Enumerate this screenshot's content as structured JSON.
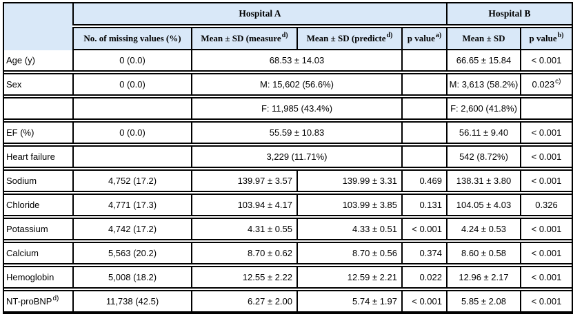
{
  "table": {
    "header": {
      "hospital_a": "Hospital A",
      "hospital_b": "Hospital B",
      "columns": {
        "missing": "No. of missing values (%)",
        "measured": {
          "text": "Mean ± SD (measure",
          "sup": "d)"
        },
        "predicted": {
          "text": "Mean ± SD (predicte",
          "sup": "d)"
        },
        "pvalue_a": {
          "text": "p value",
          "sup": "a)"
        },
        "mean_sd": "Mean ± SD",
        "pvalue_b": {
          "text": "p value",
          "sup": "b)"
        }
      }
    },
    "rows": [
      {
        "label": "Age (y)",
        "missing": "0 (0.0)",
        "span": "68.53 ± 14.03",
        "pvalue_a": "",
        "mean_sd": "66.65 ± 15.84",
        "pvalue_b": "< 0.001"
      },
      {
        "label": "Sex",
        "missing": "0 (0.0)",
        "span": "M: 15,602 (56.6%)",
        "pvalue_a": "",
        "mean_sd": "M: 3,613 (58.2%)",
        "pvalue_b": "0.023",
        "pvalue_b_sup": "c)"
      },
      {
        "label": "",
        "missing": "",
        "span": "F: 11,985 (43.4%)",
        "pvalue_a": "",
        "mean_sd": "F: 2,600 (41.8%)",
        "pvalue_b": ""
      },
      {
        "label": "EF (%)",
        "missing": "0 (0.0)",
        "span": "55.59 ± 10.83",
        "pvalue_a": "",
        "mean_sd": "56.11 ± 9.40",
        "pvalue_b": "< 0.001"
      },
      {
        "label": "Heart failure",
        "missing": "",
        "span": "3,229 (11.71%)",
        "pvalue_a": "",
        "mean_sd": "542 (8.72%)",
        "pvalue_b": "< 0.001"
      },
      {
        "label": "Sodium",
        "missing": "4,752 (17.2)",
        "measured": "139.97 ± 3.57",
        "predicted": "139.99 ± 3.31",
        "pvalue_a": "0.469",
        "mean_sd": "138.31 ± 3.80",
        "pvalue_b": "< 0.001"
      },
      {
        "label": "Chloride",
        "missing": "4,771 (17.3)",
        "measured": "103.94 ± 4.17",
        "predicted": "103.99 ± 3.85",
        "pvalue_a": "0.131",
        "mean_sd": "104.05 ± 4.03",
        "pvalue_b": "0.326"
      },
      {
        "label": "Potassium",
        "missing": "4,742 (17.2)",
        "measured": "4.31 ± 0.55",
        "predicted": "4.33 ± 0.51",
        "pvalue_a": "< 0.001",
        "mean_sd": "4.24 ± 0.53",
        "pvalue_b": "< 0.001"
      },
      {
        "label": "Calcium",
        "missing": "5,563 (20.2)",
        "measured": "8.70 ± 0.62",
        "predicted": "8.70 ± 0.56",
        "pvalue_a": "0.374",
        "mean_sd": "8.60 ± 0.58",
        "pvalue_b": "< 0.001"
      },
      {
        "label": "Hemoglobin",
        "missing": "5,008 (18.2)",
        "measured": "12.55 ± 2.22",
        "predicted": "12.59 ± 2.21",
        "pvalue_a": "0.022",
        "mean_sd": "12.96 ± 2.17",
        "pvalue_b": "< 0.001"
      },
      {
        "label": "NT-proBNP",
        "label_sup": "d)",
        "missing": "11,738 (42.5)",
        "measured": "6.27 ± 2.00",
        "predicted": "5.74 ± 1.97",
        "pvalue_a": "< 0.001",
        "mean_sd": "5.85 ± 2.08",
        "pvalue_b": "< 0.001"
      }
    ]
  },
  "colors": {
    "header_bg": "#d9e8f8",
    "border": "#000000"
  }
}
